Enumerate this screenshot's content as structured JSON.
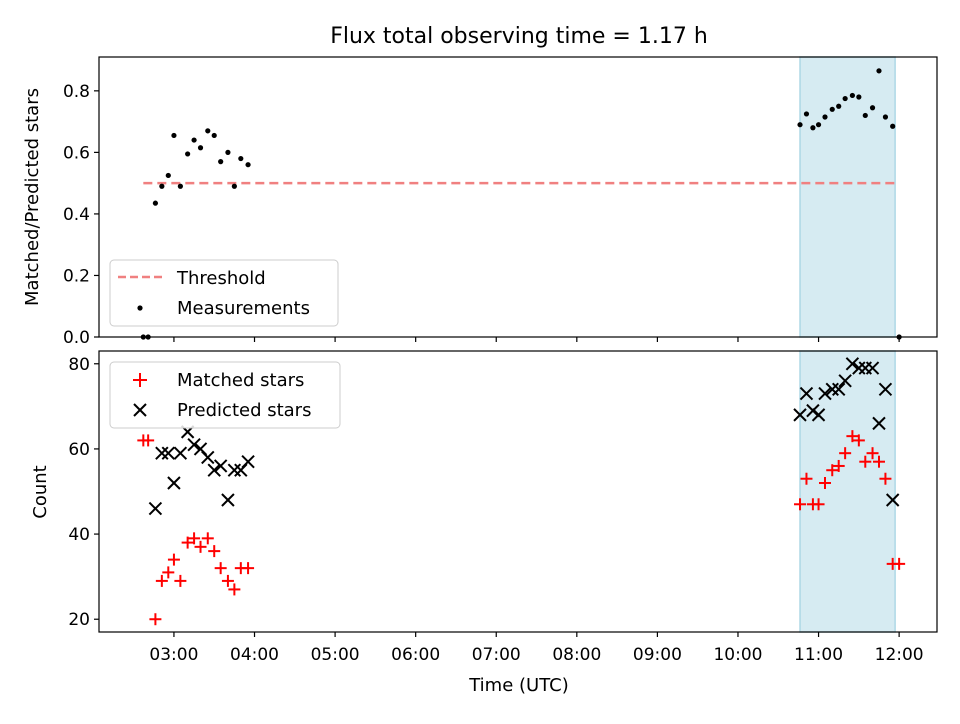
{
  "chart_data": {
    "type": "scatter",
    "title": "Flux total observing time = 1.17 h",
    "xlabel": "Time (UTC)",
    "x_ticks": [
      "03:00",
      "04:00",
      "05:00",
      "06:00",
      "07:00",
      "08:00",
      "09:00",
      "10:00",
      "11:00",
      "12:00"
    ],
    "x_tick_hours": [
      3,
      4,
      5,
      6,
      7,
      8,
      9,
      10,
      11,
      12
    ],
    "xlim_hours": [
      2.07,
      12.47
    ],
    "highlight_span_hours": [
      10.77,
      11.95
    ],
    "colors": {
      "threshold": "#f08080",
      "measurement": "#000000",
      "matched": "#ff0000",
      "predicted": "#000000",
      "span": "#add8e6"
    },
    "panels": [
      {
        "id": "ratio",
        "ylabel": "Matched/Predicted stars",
        "ylim": [
          0,
          0.91
        ],
        "y_ticks": [
          0.0,
          0.2,
          0.4,
          0.6,
          0.8
        ],
        "y_tick_labels": [
          "0.0",
          "0.2",
          "0.4",
          "0.6",
          "0.8"
        ],
        "legend": {
          "loc": "lower-left",
          "entries": [
            "Threshold",
            "Measurements"
          ]
        },
        "series": [
          {
            "name": "Threshold",
            "kind": "line",
            "x": [
              2.62,
              12.0
            ],
            "y": [
              0.5,
              0.5
            ]
          },
          {
            "name": "Measurements",
            "kind": "scatter",
            "x": [
              2.62,
              2.68,
              2.77,
              2.85,
              2.93,
              3.0,
              3.08,
              3.17,
              3.25,
              3.33,
              3.42,
              3.5,
              3.58,
              3.67,
              3.75,
              3.83,
              3.92,
              10.77,
              10.85,
              10.93,
              11.0,
              11.08,
              11.17,
              11.25,
              11.33,
              11.42,
              11.5,
              11.58,
              11.67,
              11.75,
              11.83,
              11.92,
              12.0
            ],
            "y": [
              0.0,
              0.0,
              0.435,
              0.49,
              0.525,
              0.655,
              0.49,
              0.595,
              0.64,
              0.615,
              0.67,
              0.655,
              0.57,
              0.6,
              0.49,
              0.58,
              0.56,
              0.69,
              0.725,
              0.68,
              0.69,
              0.715,
              0.74,
              0.75,
              0.775,
              0.785,
              0.78,
              0.72,
              0.745,
              0.865,
              0.715,
              0.685,
              0.0
            ]
          }
        ]
      },
      {
        "id": "counts",
        "ylabel": "Count",
        "ylim": [
          17,
          83
        ],
        "y_ticks": [
          20,
          40,
          60,
          80
        ],
        "y_tick_labels": [
          "20",
          "40",
          "60",
          "80"
        ],
        "legend": {
          "loc": "upper-left",
          "entries": [
            "Matched stars",
            "Predicted stars"
          ]
        },
        "series": [
          {
            "name": "Matched stars",
            "kind": "plus",
            "x": [
              2.62,
              2.68,
              2.77,
              2.85,
              2.93,
              3.0,
              3.08,
              3.17,
              3.25,
              3.33,
              3.42,
              3.5,
              3.58,
              3.67,
              3.75,
              3.83,
              3.92,
              10.77,
              10.85,
              10.93,
              11.0,
              11.08,
              11.17,
              11.25,
              11.33,
              11.42,
              11.5,
              11.58,
              11.67,
              11.75,
              11.83,
              11.92,
              12.0
            ],
            "y": [
              62,
              62,
              20,
              29,
              31,
              34,
              29,
              38,
              39,
              37,
              39,
              36,
              32,
              29,
              27,
              32,
              32,
              47,
              53,
              47,
              47,
              52,
              55,
              56,
              59,
              63,
              62,
              57,
              59,
              57,
              53,
              33,
              33
            ]
          },
          {
            "name": "Predicted stars",
            "kind": "cross",
            "x": [
              2.77,
              2.85,
              2.93,
              3.0,
              3.08,
              3.17,
              3.25,
              3.33,
              3.42,
              3.5,
              3.58,
              3.67,
              3.75,
              3.83,
              3.92,
              10.77,
              10.85,
              10.93,
              11.0,
              11.08,
              11.17,
              11.25,
              11.33,
              11.42,
              11.5,
              11.58,
              11.67,
              11.75,
              11.83,
              11.92
            ],
            "y": [
              46,
              59,
              59,
              52,
              59,
              64,
              61,
              60,
              58,
              55,
              56,
              48,
              55,
              55,
              57,
              68,
              73,
              69,
              68,
              73,
              74,
              74,
              76,
              80,
              79,
              79,
              79,
              66,
              74,
              48
            ]
          }
        ]
      }
    ]
  }
}
